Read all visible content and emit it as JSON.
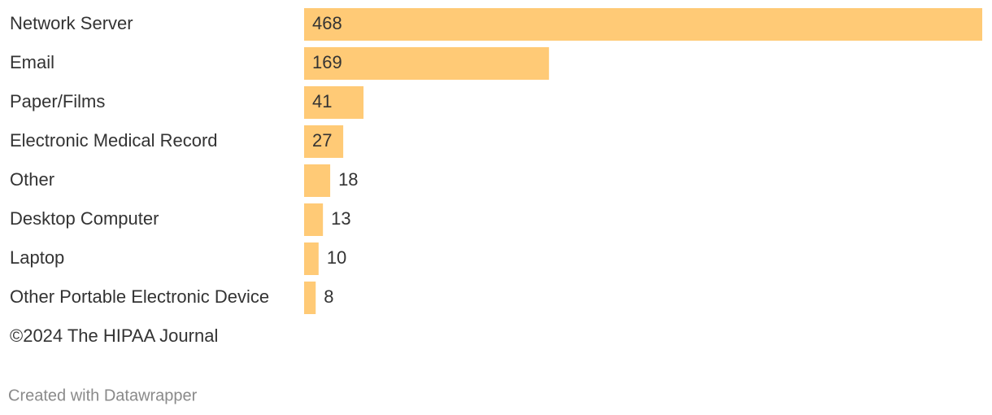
{
  "chart_data": {
    "type": "bar",
    "categories": [
      "Network Server",
      "Email",
      "Paper/Films",
      "Electronic Medical Record",
      "Other",
      "Desktop Computer",
      "Laptop",
      "Other Portable Electronic Device"
    ],
    "values": [
      468,
      169,
      41,
      27,
      18,
      13,
      10,
      8
    ],
    "color": "#ffca76",
    "note": "©2024 The HIPAA Journal",
    "footer": "Created with Datawrapper"
  }
}
